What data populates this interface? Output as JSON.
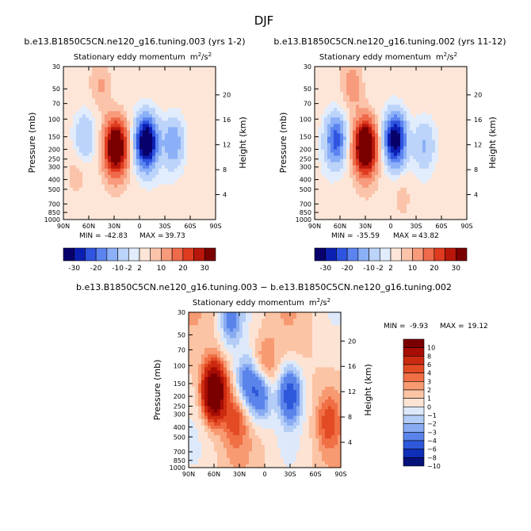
{
  "page_title": "DJF",
  "chart_data": [
    {
      "type": "heatmap",
      "panel": "top-left",
      "case_title": "b.e13.B1850C5CN.ne120_g16.tuning.003 (yrs 1-2)",
      "title_main": "Stationary eddy momentum",
      "title_units_base": "m",
      "title_units_sup1": "2",
      "title_units_sep": "/s",
      "title_units_sup2": "2",
      "ylabel_left": "Pressure (mb)",
      "ylabel_right": "Height (km)",
      "x_ticks": [
        "90N",
        "60N",
        "30N",
        "0",
        "30S",
        "60S",
        "90S"
      ],
      "x_range": [
        90,
        -90
      ],
      "p_ticks": [
        "30",
        "50",
        "70",
        "100",
        "150",
        "200",
        "250",
        "300",
        "400",
        "500",
        "700",
        "850",
        "1000"
      ],
      "p_range": [
        30,
        1000
      ],
      "z_ticks": [
        "4",
        "8",
        "12",
        "16",
        "20"
      ],
      "min_label": "MIN = ",
      "min_value": "-42.83",
      "max_label": "MAX = ",
      "max_value": "39.73",
      "colorbar_levels": [
        "-30",
        "-20",
        "-10",
        "-2",
        "2",
        "10",
        "20",
        "30"
      ],
      "features": [
        {
          "lat": -8,
          "p": 170,
          "value": -40
        },
        {
          "lat": 28,
          "p": 190,
          "value": 38
        },
        {
          "lat": 65,
          "p": 150,
          "value": -10
        },
        {
          "lat": -40,
          "p": 170,
          "value": -14
        },
        {
          "lat": 45,
          "p": 45,
          "value": 6
        },
        {
          "lat": 75,
          "p": 350,
          "value": 5
        }
      ]
    },
    {
      "type": "heatmap",
      "panel": "top-right",
      "case_title": "b.e13.B1850C5CN.ne120_g16.tuning.002 (yrs 11-12)",
      "title_main": "Stationary eddy momentum",
      "title_units_base": "m",
      "title_units_sup1": "2",
      "title_units_sep": "/s",
      "title_units_sup2": "2",
      "ylabel_left": "Pressure (mb)",
      "ylabel_right": "Height (km)",
      "x_ticks": [
        "90N",
        "60N",
        "30N",
        "0",
        "30S",
        "60S",
        "90S"
      ],
      "x_range": [
        90,
        -90
      ],
      "p_ticks": [
        "30",
        "50",
        "70",
        "100",
        "150",
        "200",
        "250",
        "300",
        "400",
        "500",
        "700",
        "850",
        "1000"
      ],
      "p_range": [
        30,
        1000
      ],
      "z_ticks": [
        "4",
        "8",
        "12",
        "16",
        "20"
      ],
      "min_label": "MIN = ",
      "min_value": "-35.59",
      "max_label": "MAX = ",
      "max_value": "43.82",
      "colorbar_levels": [
        "-30",
        "-20",
        "-10",
        "-2",
        "2",
        "10",
        "20",
        "30"
      ],
      "features": [
        {
          "lat": -5,
          "p": 160,
          "value": -35
        },
        {
          "lat": 30,
          "p": 190,
          "value": 42
        },
        {
          "lat": 65,
          "p": 160,
          "value": -22
        },
        {
          "lat": -40,
          "p": 180,
          "value": -10
        },
        {
          "lat": 45,
          "p": 45,
          "value": 8
        },
        {
          "lat": -15,
          "p": 600,
          "value": 4
        }
      ]
    },
    {
      "type": "heatmap",
      "panel": "bottom",
      "case_title": "b.e13.B1850C5CN.ne120_g16.tuning.003 − b.e13.B1850C5CN.ne120_g16.tuning.002",
      "title_main": "Stationary eddy momentum",
      "title_units_base": "m",
      "title_units_sup1": "2",
      "title_units_sep": "/s",
      "title_units_sup2": "2",
      "ylabel_left": "Pressure (mb)",
      "ylabel_right": "Height (km)",
      "x_ticks": [
        "90N",
        "60N",
        "30N",
        "0",
        "30S",
        "60S",
        "90S"
      ],
      "x_range": [
        90,
        -90
      ],
      "p_ticks": [
        "30",
        "50",
        "70",
        "100",
        "150",
        "200",
        "250",
        "300",
        "400",
        "500",
        "700",
        "850",
        "1000"
      ],
      "p_range": [
        30,
        1000
      ],
      "z_ticks": [
        "4",
        "8",
        "12",
        "16",
        "20"
      ],
      "min_label": "MIN = ",
      "min_value": "-9.93",
      "max_label": "MAX = ",
      "max_value": "19.12",
      "colorbar_levels": [
        "10",
        "8",
        "6",
        "4",
        "3",
        "2",
        "1",
        "0",
        "−1",
        "−2",
        "−3",
        "−4",
        "−6",
        "−8",
        "−10"
      ],
      "features": [
        {
          "lat": 60,
          "p": 180,
          "value": 14
        },
        {
          "lat": 5,
          "p": 190,
          "value": -6
        },
        {
          "lat": -30,
          "p": 190,
          "value": -7
        },
        {
          "lat": 22,
          "p": 150,
          "value": -5
        },
        {
          "lat": 35,
          "p": 330,
          "value": 3
        },
        {
          "lat": -75,
          "p": 350,
          "value": 3
        },
        {
          "lat": 0,
          "p": 100,
          "value": 3
        },
        {
          "lat": 40,
          "p": 35,
          "value": -4
        }
      ]
    }
  ],
  "colors": {
    "top_scale": [
      "#08006b",
      "#0c1fb3",
      "#2e54e0",
      "#5c84f0",
      "#8cb0f7",
      "#bcd3fa",
      "#e1ecfc",
      "#fde6d8",
      "#fbc4aa",
      "#f79b7c",
      "#ef6a4a",
      "#de3b1f",
      "#b8160a",
      "#7a0000"
    ],
    "diff_scale_top_to_bottom": [
      "#7a0000",
      "#a80d05",
      "#cc2a10",
      "#e34b25",
      "#f06f45",
      "#f79a72",
      "#fbc4a5",
      "#fde3d3",
      "#dde9fb",
      "#b4cdf7",
      "#88abf2",
      "#5b84ea",
      "#2f59db",
      "#0f2fb8",
      "#07117a"
    ]
  }
}
